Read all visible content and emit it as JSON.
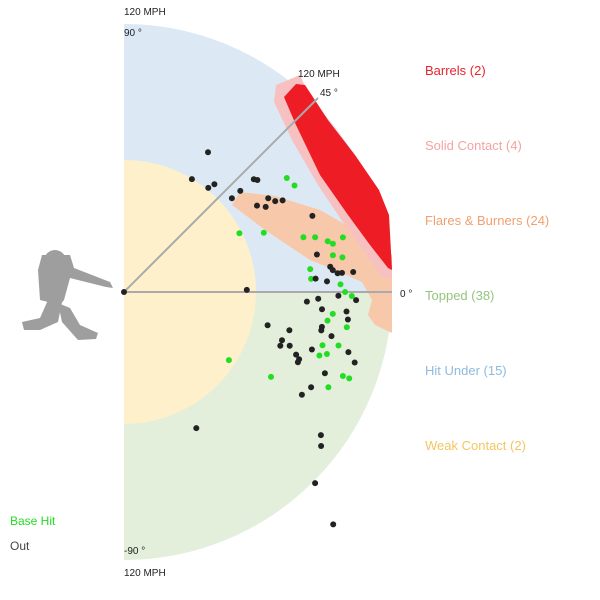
{
  "chart_data": {
    "type": "scatter",
    "title": "",
    "angle_range": [
      -90,
      90
    ],
    "speed_max": 120,
    "angle_labels": [
      "90 °",
      "45 °",
      "0 °",
      "-90 °"
    ],
    "speed_labels": [
      "120 MPH",
      "120 MPH",
      "120 MPH"
    ],
    "zones": [
      {
        "name": "Barrels",
        "count": 2,
        "label": "Barrels (2)",
        "color": "#ee1c24"
      },
      {
        "name": "Solid Contact",
        "count": 4,
        "label": "Solid Contact (4)",
        "color": "#f7a7a7"
      },
      {
        "name": "Flares & Burners",
        "count": 24,
        "label": "Flares & Burners (24)",
        "color": "#f5a26a"
      },
      {
        "name": "Topped",
        "count": 38,
        "label": "Topped (38)",
        "color": "#8fc47e"
      },
      {
        "name": "Hit Under",
        "count": 15,
        "label": "Hit Under (15)",
        "color": "#88b8e0"
      },
      {
        "name": "Weak Contact",
        "count": 2,
        "label": "Weak Contact (2)",
        "color": "#f2c65c"
      }
    ],
    "outcomes": [
      {
        "name": "Base Hit",
        "label": "Base Hit",
        "color": "#22dd22"
      },
      {
        "name": "Out",
        "label": "Out",
        "color": "#222222"
      }
    ],
    "points": [
      {
        "speed": 73,
        "angle": 59,
        "outcome": "Out"
      },
      {
        "speed": 59,
        "angle": 59,
        "outcome": "Out"
      },
      {
        "speed": 60,
        "angle": 51,
        "outcome": "Out"
      },
      {
        "speed": 63,
        "angle": 50,
        "outcome": "Out"
      },
      {
        "speed": 77,
        "angle": 41,
        "outcome": "Out"
      },
      {
        "speed": 78,
        "angle": 40,
        "outcome": "Out"
      },
      {
        "speed": 64,
        "angle": 41,
        "outcome": "Out"
      },
      {
        "speed": 69,
        "angle": 41,
        "outcome": "Out"
      },
      {
        "speed": 77,
        "angle": 33,
        "outcome": "Out"
      },
      {
        "speed": 71,
        "angle": 33,
        "outcome": "Out"
      },
      {
        "speed": 74,
        "angle": 31,
        "outcome": "Out"
      },
      {
        "speed": 79,
        "angle": 31,
        "outcome": "Out"
      },
      {
        "speed": 82,
        "angle": 30,
        "outcome": "Out"
      },
      {
        "speed": 89,
        "angle": 35,
        "outcome": "Base Hit"
      },
      {
        "speed": 90,
        "angle": 32,
        "outcome": "Base Hit"
      },
      {
        "speed": 58,
        "angle": 27,
        "outcome": "Base Hit"
      },
      {
        "speed": 68,
        "angle": 23,
        "outcome": "Base Hit"
      },
      {
        "speed": 91,
        "angle": 22,
        "outcome": "Out"
      },
      {
        "speed": 84,
        "angle": 17,
        "outcome": "Base Hit"
      },
      {
        "speed": 89,
        "angle": 16,
        "outcome": "Base Hit"
      },
      {
        "speed": 94,
        "angle": 14,
        "outcome": "Base Hit"
      },
      {
        "speed": 96,
        "angle": 13,
        "outcome": "Base Hit"
      },
      {
        "speed": 101,
        "angle": 14,
        "outcome": "Base Hit"
      },
      {
        "speed": 95,
        "angle": 10,
        "outcome": "Base Hit"
      },
      {
        "speed": 99,
        "angle": 9,
        "outcome": "Base Hit"
      },
      {
        "speed": 84,
        "angle": 7,
        "outcome": "Base Hit"
      },
      {
        "speed": 93,
        "angle": 7,
        "outcome": "Out"
      },
      {
        "speed": 96,
        "angle": 5,
        "outcome": "Out"
      },
      {
        "speed": 94,
        "angle": 6,
        "outcome": "Out"
      },
      {
        "speed": 98,
        "angle": 5,
        "outcome": "Out"
      },
      {
        "speed": 103,
        "angle": 5,
        "outcome": "Out"
      },
      {
        "speed": 84,
        "angle": 4,
        "outcome": "Base Hit"
      },
      {
        "speed": 86,
        "angle": 4,
        "outcome": "Out"
      },
      {
        "speed": 91,
        "angle": 3,
        "outcome": "Out"
      },
      {
        "speed": 97,
        "angle": 2,
        "outcome": "Base Hit"
      },
      {
        "speed": 99,
        "angle": 0,
        "outcome": "Base Hit"
      },
      {
        "speed": 88,
        "angle": 11,
        "outcome": "Out"
      },
      {
        "speed": 55,
        "angle": 1,
        "outcome": "Out"
      },
      {
        "speed": 102,
        "angle": -1,
        "outcome": "Base Hit"
      },
      {
        "speed": 104,
        "angle": -2,
        "outcome": "Out"
      },
      {
        "speed": 96,
        "angle": -1,
        "outcome": "Out"
      },
      {
        "speed": 82,
        "angle": -3,
        "outcome": "Out"
      },
      {
        "speed": 87,
        "angle": -2,
        "outcome": "Out"
      },
      {
        "speed": 89,
        "angle": -5,
        "outcome": "Out"
      },
      {
        "speed": 94,
        "angle": -6,
        "outcome": "Base Hit"
      },
      {
        "speed": 100,
        "angle": -5,
        "outcome": "Out"
      },
      {
        "speed": 92,
        "angle": -8,
        "outcome": "Base Hit"
      },
      {
        "speed": 90,
        "angle": -10,
        "outcome": "Out"
      },
      {
        "speed": 101,
        "angle": -7,
        "outcome": "Out"
      },
      {
        "speed": 101,
        "angle": -9,
        "outcome": "Base Hit"
      },
      {
        "speed": 66,
        "angle": -13,
        "outcome": "Out"
      },
      {
        "speed": 76,
        "angle": -13,
        "outcome": "Out"
      },
      {
        "speed": 90,
        "angle": -11,
        "outcome": "Out"
      },
      {
        "speed": 92,
        "angle": -15,
        "outcome": "Base Hit"
      },
      {
        "speed": 95,
        "angle": -12,
        "outcome": "Out"
      },
      {
        "speed": 99,
        "angle": -14,
        "outcome": "Base Hit"
      },
      {
        "speed": 104,
        "angle": -15,
        "outcome": "Out"
      },
      {
        "speed": 74,
        "angle": -17,
        "outcome": "Out"
      },
      {
        "speed": 74,
        "angle": -19,
        "outcome": "Out"
      },
      {
        "speed": 78,
        "angle": -18,
        "outcome": "Out"
      },
      {
        "speed": 82,
        "angle": -20,
        "outcome": "Out"
      },
      {
        "speed": 88,
        "angle": -17,
        "outcome": "Out"
      },
      {
        "speed": 92,
        "angle": -18,
        "outcome": "Base Hit"
      },
      {
        "speed": 95,
        "angle": -17,
        "outcome": "Base Hit"
      },
      {
        "speed": 108,
        "angle": -17,
        "outcome": "Out"
      },
      {
        "speed": 84,
        "angle": -21,
        "outcome": "Out"
      },
      {
        "speed": 84,
        "angle": -22,
        "outcome": "Out"
      },
      {
        "speed": 97,
        "angle": -22,
        "outcome": "Out"
      },
      {
        "speed": 105,
        "angle": -21,
        "outcome": "Base Hit"
      },
      {
        "speed": 108,
        "angle": -21,
        "outcome": "Base Hit"
      },
      {
        "speed": 101,
        "angle": -25,
        "outcome": "Base Hit"
      },
      {
        "speed": 76,
        "angle": -30,
        "outcome": "Base Hit"
      },
      {
        "speed": 94,
        "angle": -27,
        "outcome": "Out"
      },
      {
        "speed": 92,
        "angle": -30,
        "outcome": "Out"
      },
      {
        "speed": 56,
        "angle": -33,
        "outcome": "Base Hit"
      },
      {
        "speed": 109,
        "angle": -36,
        "outcome": "Out"
      },
      {
        "speed": 112,
        "angle": -38,
        "outcome": "Out"
      },
      {
        "speed": 121,
        "angle": -45,
        "outcome": "Out"
      },
      {
        "speed": 140,
        "angle": -48,
        "outcome": "Out"
      },
      {
        "speed": 69,
        "angle": -62,
        "outcome": "Out"
      }
    ]
  }
}
